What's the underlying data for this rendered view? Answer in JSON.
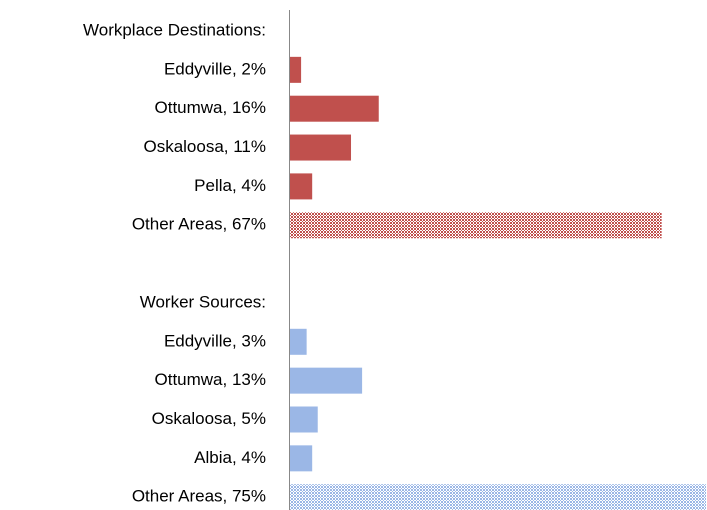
{
  "chart_data": {
    "type": "bar",
    "orientation": "horizontal",
    "categories": [
      "Workplace Destinations:",
      "Eddyville, 2%",
      "Ottumwa, 16%",
      "Oskaloosa, 11%",
      "Pella, 4%",
      "Other Areas, 67%",
      null,
      "Worker Sources:",
      "Eddyville, 3%",
      "Ottumwa, 13%",
      "Oskaloosa, 5%",
      "Albia, 4%",
      "Other Areas, 75%"
    ],
    "values": [
      null,
      2,
      16,
      11,
      4,
      67,
      null,
      null,
      3,
      13,
      5,
      4,
      75
    ],
    "colors": [
      null,
      "#c0504d",
      "#c0504d",
      "#c0504d",
      "#c0504d",
      "#c0504d",
      null,
      null,
      "#9bb7e6",
      "#9bb7e6",
      "#9bb7e6",
      "#9bb7e6",
      "#9bb7e6"
    ],
    "patterned": [
      false,
      false,
      false,
      false,
      false,
      true,
      false,
      false,
      false,
      false,
      false,
      false,
      true
    ]
  }
}
